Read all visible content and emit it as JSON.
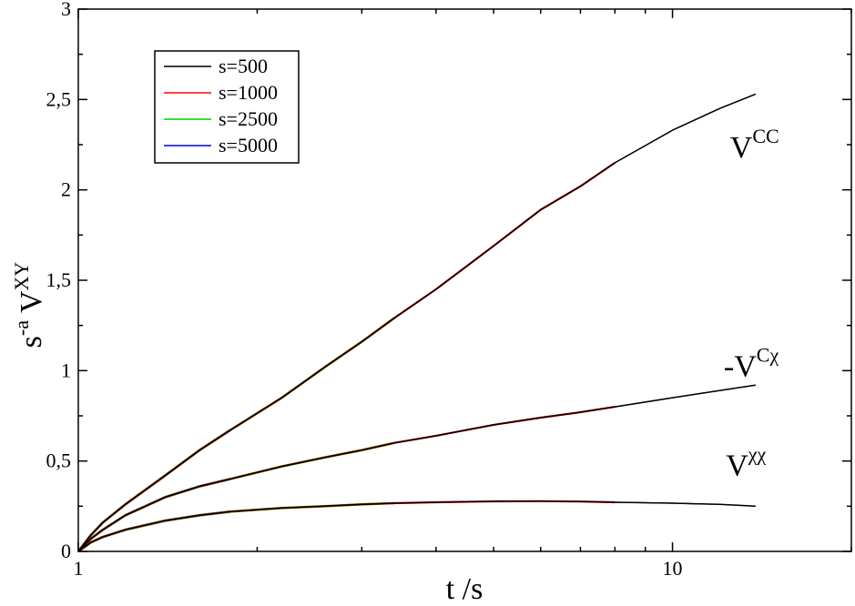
{
  "chart_data": {
    "type": "line",
    "xscale": "log",
    "xlim": [
      1,
      20
    ],
    "ylim": [
      0,
      3
    ],
    "xticks": [
      {
        "value": 1,
        "label": "1"
      },
      {
        "value": 10,
        "label": "10"
      }
    ],
    "yticks": [
      {
        "value": 0,
        "label": "0"
      },
      {
        "value": 0.5,
        "label": "0,5"
      },
      {
        "value": 1,
        "label": "1"
      },
      {
        "value": 1.5,
        "label": "1,5"
      },
      {
        "value": 2,
        "label": "2"
      },
      {
        "value": 2.5,
        "label": "2,5"
      },
      {
        "value": 3,
        "label": "3"
      }
    ],
    "xlabel": "t /s",
    "ylabel": {
      "prefix": "s",
      "prefix_sup": "-a",
      "main": "V",
      "main_sup": "XY"
    },
    "legend": {
      "placement": "top-left",
      "entries": [
        {
          "label": "s=500",
          "color": "#000000"
        },
        {
          "label": "s=1000",
          "color": "#ff0000"
        },
        {
          "label": "s=2500",
          "color": "#00cc00"
        },
        {
          "label": "s=5000",
          "color": "#0000cc"
        }
      ]
    },
    "annotations": [
      {
        "id": "vcc",
        "base": "V",
        "sup": "CC",
        "x": 12.5,
        "y": 2.18
      },
      {
        "id": "vcchi",
        "base": "-V",
        "sup": "Cχ",
        "x": 12.2,
        "y": 0.97
      },
      {
        "id": "vchichi",
        "base": "V",
        "sup": "χχ",
        "x": 12.3,
        "y": 0.42
      }
    ],
    "curves": [
      {
        "name": "V^CC",
        "points": [
          [
            1,
            0
          ],
          [
            1.05,
            0.09
          ],
          [
            1.1,
            0.16
          ],
          [
            1.2,
            0.26
          ],
          [
            1.4,
            0.42
          ],
          [
            1.6,
            0.56
          ],
          [
            1.8,
            0.67
          ],
          [
            2.2,
            0.85
          ],
          [
            2.6,
            1.02
          ],
          [
            3,
            1.16
          ],
          [
            3.4,
            1.29
          ],
          [
            4,
            1.45
          ],
          [
            5,
            1.69
          ],
          [
            6,
            1.89
          ],
          [
            7,
            2.02
          ],
          [
            8,
            2.15
          ],
          [
            10,
            2.33
          ],
          [
            12,
            2.45
          ],
          [
            13.8,
            2.53
          ]
        ]
      },
      {
        "name": "-V^Cχ",
        "points": [
          [
            1,
            0
          ],
          [
            1.05,
            0.07
          ],
          [
            1.1,
            0.12
          ],
          [
            1.2,
            0.2
          ],
          [
            1.4,
            0.3
          ],
          [
            1.6,
            0.36
          ],
          [
            1.8,
            0.4
          ],
          [
            2.2,
            0.47
          ],
          [
            2.6,
            0.52
          ],
          [
            3,
            0.56
          ],
          [
            3.4,
            0.6
          ],
          [
            4,
            0.64
          ],
          [
            5,
            0.7
          ],
          [
            6,
            0.74
          ],
          [
            7,
            0.77
          ],
          [
            8,
            0.8
          ],
          [
            10,
            0.85
          ],
          [
            12,
            0.89
          ],
          [
            13.8,
            0.92
          ]
        ]
      },
      {
        "name": "V^χχ",
        "points": [
          [
            1,
            0
          ],
          [
            1.05,
            0.05
          ],
          [
            1.1,
            0.08
          ],
          [
            1.2,
            0.12
          ],
          [
            1.4,
            0.17
          ],
          [
            1.6,
            0.2
          ],
          [
            1.8,
            0.22
          ],
          [
            2.2,
            0.24
          ],
          [
            2.6,
            0.25
          ],
          [
            3,
            0.26
          ],
          [
            3.4,
            0.267
          ],
          [
            4,
            0.272
          ],
          [
            5,
            0.277
          ],
          [
            6,
            0.278
          ],
          [
            7,
            0.276
          ],
          [
            8,
            0.272
          ],
          [
            10,
            0.267
          ],
          [
            12,
            0.26
          ],
          [
            13.8,
            0.25
          ]
        ]
      }
    ],
    "series": [
      {
        "name": "s=500",
        "color": "#000000",
        "x_range": [
          1,
          13.8
        ]
      },
      {
        "name": "s=1000",
        "color": "#ff0000",
        "x_range": [
          1,
          8
        ]
      },
      {
        "name": "s=2500",
        "color": "#00cc00",
        "x_range": [
          1,
          3.4
        ]
      },
      {
        "name": "s=5000",
        "color": "#0000cc",
        "x_range": [
          1,
          1.8
        ]
      }
    ]
  }
}
